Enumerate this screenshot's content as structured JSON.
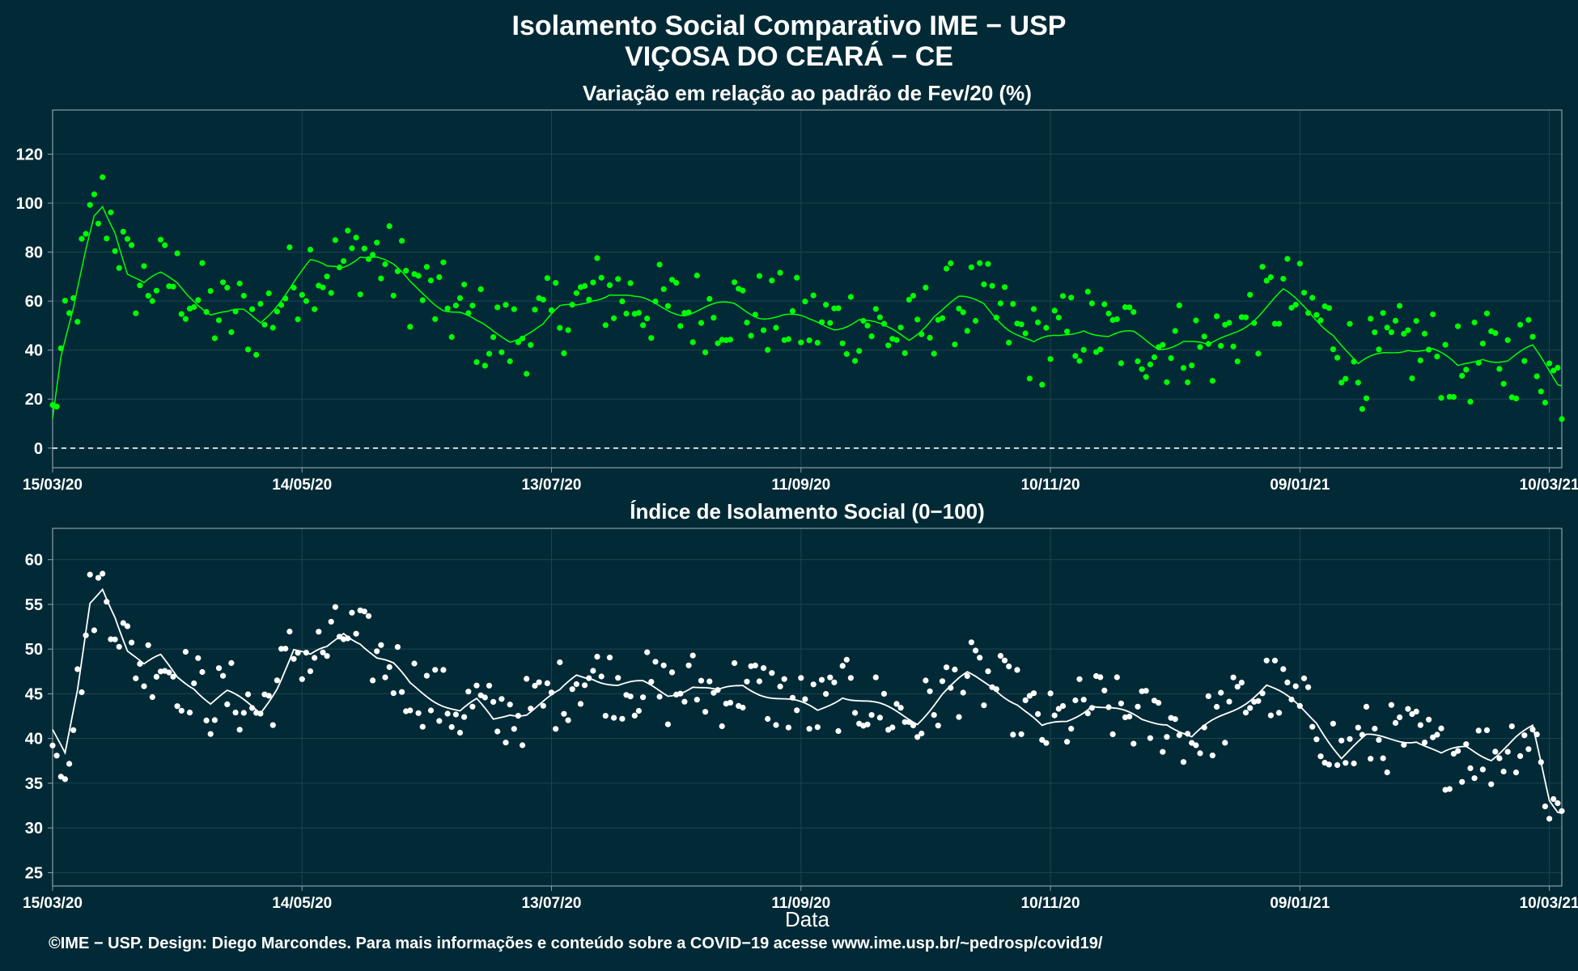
{
  "header": {
    "title_line1": "Isolamento Social Comparativo IME − USP",
    "title_line2": "VIÇOSA DO CEARÁ − CE"
  },
  "footer": {
    "credit": "©IME − USP. Design: Diego Marcondes. Para mais informações e conteúdo sobre a COVID−19 acesse www.ime.usp.br/~pedrosp/covid19/"
  },
  "colors": {
    "background": "#022a36",
    "panel_border": "#8aa0a8",
    "grid": "#1d4550",
    "top_series": "#00ff00",
    "top_negative": "#ff2020",
    "bottom_series": "#ffffff"
  },
  "chart_data": [
    {
      "type": "scatter",
      "title": "Variação em relação ao padrão de Fev/20 (%)",
      "xlabel": "",
      "ylabel": "",
      "x_start": "15/03/20",
      "x_end": "13/03/21",
      "x_ticks": [
        "15/03/20",
        "14/05/20",
        "13/07/20",
        "11/09/20",
        "10/11/20",
        "09/01/21",
        "10/03/21"
      ],
      "y_ticks": [
        0,
        20,
        40,
        60,
        80,
        100,
        120
      ],
      "ylim": [
        -8,
        138
      ],
      "reference_line": 0,
      "grid": true,
      "series": [
        {
          "kind": "points",
          "color": "#00ff00",
          "negative_color": "#ff2020"
        },
        {
          "kind": "moving_average_line",
          "color": "#00ff00"
        }
      ],
      "anchors": [
        [
          0,
          12
        ],
        [
          2,
          36
        ],
        [
          5,
          55
        ],
        [
          8,
          80
        ],
        [
          10,
          95
        ],
        [
          12,
          100
        ],
        [
          15,
          90
        ],
        [
          18,
          72
        ],
        [
          22,
          66
        ],
        [
          26,
          70
        ],
        [
          30,
          68
        ],
        [
          34,
          62
        ],
        [
          38,
          55
        ],
        [
          42,
          54
        ],
        [
          46,
          55
        ],
        [
          50,
          52
        ],
        [
          54,
          60
        ],
        [
          58,
          68
        ],
        [
          62,
          75
        ],
        [
          66,
          73
        ],
        [
          70,
          75
        ],
        [
          74,
          80
        ],
        [
          78,
          78
        ],
        [
          82,
          73
        ],
        [
          86,
          67
        ],
        [
          90,
          63
        ],
        [
          94,
          58
        ],
        [
          98,
          55
        ],
        [
          102,
          50
        ],
        [
          106,
          47
        ],
        [
          110,
          45
        ],
        [
          114,
          48
        ],
        [
          118,
          50
        ],
        [
          122,
          56
        ],
        [
          126,
          58
        ],
        [
          130,
          62
        ],
        [
          134,
          64
        ],
        [
          140,
          60
        ],
        [
          146,
          58
        ],
        [
          152,
          56
        ],
        [
          158,
          57
        ],
        [
          164,
          58
        ],
        [
          170,
          55
        ],
        [
          176,
          54
        ],
        [
          182,
          51
        ],
        [
          188,
          50
        ],
        [
          194,
          53
        ],
        [
          200,
          48
        ],
        [
          206,
          45
        ],
        [
          212,
          55
        ],
        [
          218,
          60
        ],
        [
          224,
          59
        ],
        [
          230,
          50
        ],
        [
          236,
          42
        ],
        [
          242,
          45
        ],
        [
          248,
          50
        ],
        [
          254,
          45
        ],
        [
          260,
          46
        ],
        [
          266,
          42
        ],
        [
          272,
          44
        ],
        [
          278,
          40
        ],
        [
          284,
          48
        ],
        [
          290,
          55
        ],
        [
          296,
          63
        ],
        [
          302,
          56
        ],
        [
          308,
          48
        ],
        [
          314,
          33
        ],
        [
          320,
          38
        ],
        [
          326,
          42
        ],
        [
          332,
          40
        ],
        [
          338,
          32
        ],
        [
          344,
          38
        ],
        [
          350,
          36
        ],
        [
          356,
          40
        ],
        [
          362,
          27
        ]
      ]
    },
    {
      "type": "scatter",
      "title": "Índice de Isolamento Social (0−100)",
      "xlabel": "Data",
      "ylabel": "",
      "x_start": "15/03/20",
      "x_end": "13/03/21",
      "x_ticks": [
        "15/03/20",
        "14/05/20",
        "13/07/20",
        "11/09/20",
        "10/11/20",
        "09/01/21",
        "10/03/21"
      ],
      "y_ticks": [
        25,
        30,
        35,
        40,
        45,
        50,
        55,
        60
      ],
      "ylim": [
        23.5,
        63.5
      ],
      "grid": true,
      "series": [
        {
          "kind": "points",
          "color": "#ffffff"
        },
        {
          "kind": "moving_average_line",
          "color": "#ffffff"
        }
      ],
      "anchors": [
        [
          0,
          41
        ],
        [
          3,
          38
        ],
        [
          6,
          45
        ],
        [
          9,
          55
        ],
        [
          12,
          57
        ],
        [
          15,
          54
        ],
        [
          18,
          50
        ],
        [
          22,
          48
        ],
        [
          26,
          49
        ],
        [
          30,
          47
        ],
        [
          34,
          46
        ],
        [
          38,
          44
        ],
        [
          42,
          45
        ],
        [
          46,
          44
        ],
        [
          50,
          43
        ],
        [
          54,
          46
        ],
        [
          58,
          50
        ],
        [
          62,
          49
        ],
        [
          66,
          50
        ],
        [
          70,
          52
        ],
        [
          74,
          51
        ],
        [
          78,
          49
        ],
        [
          82,
          48
        ],
        [
          86,
          46
        ],
        [
          90,
          45
        ],
        [
          94,
          44
        ],
        [
          98,
          43
        ],
        [
          102,
          44
        ],
        [
          106,
          42
        ],
        [
          110,
          43
        ],
        [
          114,
          43
        ],
        [
          118,
          44
        ],
        [
          122,
          45
        ],
        [
          126,
          47
        ],
        [
          130,
          47
        ],
        [
          136,
          46
        ],
        [
          142,
          46
        ],
        [
          148,
          45
        ],
        [
          154,
          46
        ],
        [
          160,
          45
        ],
        [
          166,
          46
        ],
        [
          172,
          45
        ],
        [
          178,
          44
        ],
        [
          184,
          43
        ],
        [
          190,
          45
        ],
        [
          196,
          44
        ],
        [
          202,
          43
        ],
        [
          208,
          42
        ],
        [
          214,
          45
        ],
        [
          220,
          47
        ],
        [
          226,
          46
        ],
        [
          232,
          44
        ],
        [
          238,
          41
        ],
        [
          244,
          42
        ],
        [
          250,
          44
        ],
        [
          256,
          43
        ],
        [
          262,
          42
        ],
        [
          268,
          42
        ],
        [
          274,
          40
        ],
        [
          280,
          42
        ],
        [
          286,
          44
        ],
        [
          292,
          46
        ],
        [
          298,
          44
        ],
        [
          304,
          42
        ],
        [
          310,
          38
        ],
        [
          316,
          40
        ],
        [
          322,
          40
        ],
        [
          328,
          40
        ],
        [
          334,
          38
        ],
        [
          340,
          39
        ],
        [
          346,
          38
        ],
        [
          352,
          40
        ],
        [
          356,
          41
        ],
        [
          360,
          33
        ],
        [
          362,
          32
        ]
      ]
    }
  ]
}
